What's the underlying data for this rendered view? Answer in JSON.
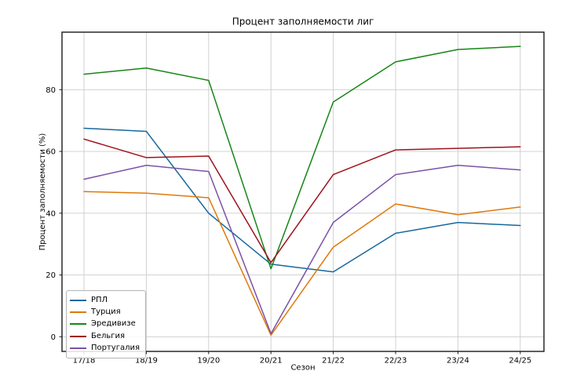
{
  "chart_data": {
    "type": "line",
    "title": "Процент заполняемости лиг",
    "xlabel": "Сезон",
    "ylabel": "Процент заполняемости (%)",
    "categories": [
      "17/18",
      "18/19",
      "19/20",
      "20/21",
      "21/22",
      "22/23",
      "23/24",
      "24/25"
    ],
    "yticks": [
      0,
      20,
      40,
      60,
      80
    ],
    "ylim": [
      -4.7,
      98.6
    ],
    "grid": true,
    "legend_position": "lower left",
    "series": [
      {
        "name": "РПЛ",
        "color": "#15689c",
        "values": [
          67.5,
          66.5,
          40.0,
          23.5,
          21.0,
          33.5,
          37.0,
          36.0
        ]
      },
      {
        "name": "Турция",
        "color": "#de790b",
        "values": [
          47.0,
          46.5,
          45.0,
          0.5,
          29.0,
          43.0,
          39.5,
          42.0
        ]
      },
      {
        "name": "Эредивизе",
        "color": "#168616",
        "values": [
          85.0,
          87.0,
          83.0,
          22.0,
          76.0,
          89.0,
          93.0,
          94.0
        ]
      },
      {
        "name": "Бельгия",
        "color": "#9e121c",
        "values": [
          64.0,
          58.0,
          58.5,
          24.0,
          52.5,
          60.5,
          61.0,
          61.5
        ]
      },
      {
        "name": "Португалия",
        "color": "#7b52a5",
        "values": [
          51.0,
          55.5,
          53.5,
          1.0,
          37.0,
          52.5,
          55.5,
          54.0
        ]
      }
    ],
    "grid_color": "#cccccc",
    "spine_color": "#1a1a1a"
  }
}
